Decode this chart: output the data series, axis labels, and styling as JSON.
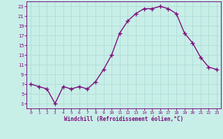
{
  "x": [
    0,
    1,
    2,
    3,
    4,
    5,
    6,
    7,
    8,
    9,
    10,
    11,
    12,
    13,
    14,
    15,
    16,
    17,
    18,
    19,
    20,
    21,
    22,
    23
  ],
  "y": [
    7,
    6.5,
    6,
    3,
    6.5,
    6,
    6.5,
    6,
    7.5,
    10,
    13,
    17.5,
    20,
    21.5,
    22.5,
    22.5,
    23,
    22.5,
    21.5,
    17.5,
    15.5,
    12.5,
    10.5,
    10
  ],
  "line_color": "#7b0d7b",
  "marker": "+",
  "marker_size": 4,
  "line_width": 1.0,
  "background_color": "#c8eee8",
  "grid_color": "#b0ddd8",
  "xlabel": "Windchill (Refroidissement éolien,°C)",
  "xlabel_color": "#7b0d7b",
  "tick_color": "#7b0d7b",
  "spine_color": "#7b0d7b",
  "ylim": [
    2,
    24
  ],
  "xlim": [
    -0.5,
    23.5
  ],
  "yticks": [
    3,
    5,
    7,
    9,
    11,
    13,
    15,
    17,
    19,
    21,
    23
  ],
  "xticks": [
    0,
    1,
    2,
    3,
    4,
    5,
    6,
    7,
    8,
    9,
    10,
    11,
    12,
    13,
    14,
    15,
    16,
    17,
    18,
    19,
    20,
    21,
    22,
    23
  ]
}
